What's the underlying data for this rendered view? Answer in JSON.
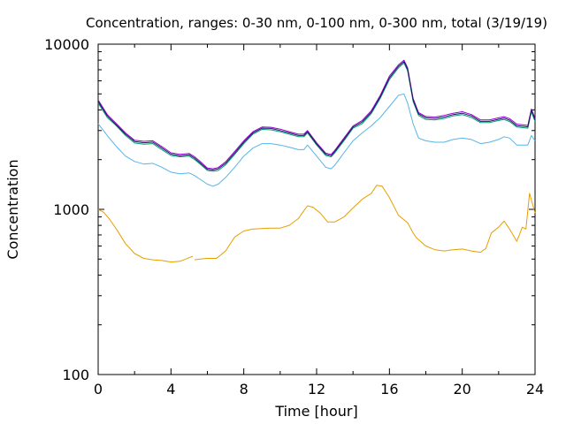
{
  "chart_data": {
    "type": "line",
    "title": "Concentration, ranges: 0-30 nm, 0-100 nm, 0-300 nm, total (3/19/19)",
    "xlabel": "Time [hour]",
    "ylabel": "Concentration",
    "xlim": [
      0,
      24
    ],
    "ylim": [
      100,
      10000
    ],
    "yscale": "log",
    "grid": false,
    "legend": "none",
    "x_ticks": [
      0,
      4,
      8,
      12,
      16,
      20,
      24
    ],
    "x_tick_labels": [
      "0",
      "4",
      "8",
      "12",
      "16",
      "20",
      "24"
    ],
    "y_ticks": [
      100,
      1000,
      10000
    ],
    "y_tick_labels": [
      "100",
      "1000",
      "10000"
    ],
    "series": [
      {
        "color": "#e69f00",
        "gaps": [
          [
            5.2,
            5.3
          ],
          [
            23.3,
            23.7
          ]
        ],
        "points": [
          [
            0,
            1000
          ],
          [
            0.3,
            960
          ],
          [
            0.6,
            880
          ],
          [
            1,
            760
          ],
          [
            1.5,
            620
          ],
          [
            2,
            540
          ],
          [
            2.5,
            505
          ],
          [
            3,
            495
          ],
          [
            3.5,
            490
          ],
          [
            4,
            480
          ],
          [
            4.5,
            485
          ],
          [
            5,
            510
          ],
          [
            5.2,
            520
          ],
          [
            5.3,
            495
          ],
          [
            5.6,
            500
          ],
          [
            6,
            505
          ],
          [
            6.5,
            505
          ],
          [
            7,
            560
          ],
          [
            7.5,
            680
          ],
          [
            8,
            740
          ],
          [
            8.5,
            760
          ],
          [
            9,
            765
          ],
          [
            9.5,
            770
          ],
          [
            10,
            770
          ],
          [
            10.5,
            800
          ],
          [
            11,
            880
          ],
          [
            11.3,
            980
          ],
          [
            11.5,
            1050
          ],
          [
            11.8,
            1030
          ],
          [
            12.2,
            950
          ],
          [
            12.6,
            840
          ],
          [
            13,
            840
          ],
          [
            13.5,
            900
          ],
          [
            14,
            1020
          ],
          [
            14.5,
            1150
          ],
          [
            15,
            1250
          ],
          [
            15.3,
            1400
          ],
          [
            15.6,
            1380
          ],
          [
            16,
            1180
          ],
          [
            16.5,
            920
          ],
          [
            17,
            830
          ],
          [
            17.3,
            720
          ],
          [
            17.5,
            670
          ],
          [
            18,
            600
          ],
          [
            18.5,
            570
          ],
          [
            19,
            560
          ],
          [
            19.5,
            570
          ],
          [
            20,
            575
          ],
          [
            20.5,
            560
          ],
          [
            21,
            550
          ],
          [
            21.3,
            580
          ],
          [
            21.6,
            720
          ],
          [
            22,
            780
          ],
          [
            22.3,
            850
          ],
          [
            22.6,
            760
          ],
          [
            23,
            640
          ],
          [
            23.3,
            780
          ],
          [
            23.5,
            760
          ],
          [
            23.7,
            1250
          ],
          [
            24,
            950
          ]
        ]
      },
      {
        "color": "#56b4e9",
        "gaps": [],
        "points": [
          [
            0,
            3300
          ],
          [
            0.5,
            2800
          ],
          [
            1,
            2400
          ],
          [
            1.5,
            2100
          ],
          [
            2,
            1950
          ],
          [
            2.5,
            1880
          ],
          [
            3,
            1900
          ],
          [
            3.5,
            1800
          ],
          [
            4,
            1680
          ],
          [
            4.5,
            1640
          ],
          [
            5,
            1660
          ],
          [
            5.3,
            1600
          ],
          [
            5.6,
            1520
          ],
          [
            6,
            1420
          ],
          [
            6.3,
            1380
          ],
          [
            6.6,
            1420
          ],
          [
            7,
            1560
          ],
          [
            7.5,
            1800
          ],
          [
            8,
            2100
          ],
          [
            8.5,
            2350
          ],
          [
            9,
            2500
          ],
          [
            9.5,
            2500
          ],
          [
            10,
            2450
          ],
          [
            10.5,
            2380
          ],
          [
            11,
            2300
          ],
          [
            11.3,
            2300
          ],
          [
            11.5,
            2450
          ],
          [
            12,
            2100
          ],
          [
            12.5,
            1800
          ],
          [
            12.8,
            1760
          ],
          [
            13,
            1850
          ],
          [
            13.5,
            2200
          ],
          [
            14,
            2600
          ],
          [
            14.5,
            2900
          ],
          [
            15,
            3200
          ],
          [
            15.5,
            3600
          ],
          [
            16,
            4200
          ],
          [
            16.5,
            4900
          ],
          [
            16.8,
            5000
          ],
          [
            17,
            4400
          ],
          [
            17.3,
            3300
          ],
          [
            17.6,
            2700
          ],
          [
            18,
            2600
          ],
          [
            18.5,
            2550
          ],
          [
            19,
            2550
          ],
          [
            19.5,
            2650
          ],
          [
            20,
            2700
          ],
          [
            20.5,
            2650
          ],
          [
            21,
            2500
          ],
          [
            21.5,
            2550
          ],
          [
            22,
            2650
          ],
          [
            22.3,
            2750
          ],
          [
            22.6,
            2700
          ],
          [
            23,
            2450
          ],
          [
            23.6,
            2450
          ],
          [
            23.8,
            2800
          ],
          [
            24,
            2600
          ]
        ]
      },
      {
        "color": "#009e73",
        "gaps": [],
        "points": [
          [
            0,
            4400
          ],
          [
            0.5,
            3600
          ],
          [
            1,
            3200
          ],
          [
            1.5,
            2800
          ],
          [
            2,
            2520
          ],
          [
            2.5,
            2480
          ],
          [
            3,
            2500
          ],
          [
            3.5,
            2300
          ],
          [
            4,
            2120
          ],
          [
            4.5,
            2080
          ],
          [
            5,
            2100
          ],
          [
            5.3,
            2000
          ],
          [
            5.6,
            1880
          ],
          [
            6,
            1720
          ],
          [
            6.3,
            1700
          ],
          [
            6.6,
            1720
          ],
          [
            7,
            1860
          ],
          [
            7.5,
            2150
          ],
          [
            8,
            2500
          ],
          [
            8.5,
            2850
          ],
          [
            9,
            3050
          ],
          [
            9.5,
            3030
          ],
          [
            10,
            2950
          ],
          [
            10.5,
            2850
          ],
          [
            11,
            2750
          ],
          [
            11.3,
            2750
          ],
          [
            11.5,
            2900
          ],
          [
            12,
            2450
          ],
          [
            12.5,
            2120
          ],
          [
            12.8,
            2080
          ],
          [
            13,
            2200
          ],
          [
            13.5,
            2600
          ],
          [
            14,
            3100
          ],
          [
            14.5,
            3300
          ],
          [
            15,
            3800
          ],
          [
            15.5,
            4700
          ],
          [
            16,
            6100
          ],
          [
            16.5,
            7200
          ],
          [
            16.8,
            7700
          ],
          [
            17,
            6900
          ],
          [
            17.3,
            4500
          ],
          [
            17.6,
            3700
          ],
          [
            18,
            3500
          ],
          [
            18.5,
            3480
          ],
          [
            19,
            3550
          ],
          [
            19.5,
            3680
          ],
          [
            20,
            3750
          ],
          [
            20.5,
            3600
          ],
          [
            21,
            3350
          ],
          [
            21.5,
            3350
          ],
          [
            22,
            3450
          ],
          [
            22.3,
            3500
          ],
          [
            22.6,
            3400
          ],
          [
            23,
            3150
          ],
          [
            23.6,
            3100
          ],
          [
            23.8,
            3900
          ],
          [
            24,
            3400
          ]
        ]
      },
      {
        "color": "#9400d3",
        "gaps": [],
        "points": [
          [
            0,
            4600
          ],
          [
            0.5,
            3750
          ],
          [
            1,
            3300
          ],
          [
            1.5,
            2900
          ],
          [
            2,
            2620
          ],
          [
            2.5,
            2580
          ],
          [
            3,
            2600
          ],
          [
            3.5,
            2400
          ],
          [
            4,
            2200
          ],
          [
            4.5,
            2150
          ],
          [
            5,
            2180
          ],
          [
            5.3,
            2080
          ],
          [
            5.6,
            1950
          ],
          [
            6,
            1780
          ],
          [
            6.3,
            1760
          ],
          [
            6.6,
            1790
          ],
          [
            7,
            1940
          ],
          [
            7.5,
            2240
          ],
          [
            8,
            2600
          ],
          [
            8.5,
            2950
          ],
          [
            9,
            3150
          ],
          [
            9.5,
            3140
          ],
          [
            10,
            3060
          ],
          [
            10.5,
            2950
          ],
          [
            11,
            2850
          ],
          [
            11.3,
            2850
          ],
          [
            11.5,
            3000
          ],
          [
            12,
            2530
          ],
          [
            12.5,
            2190
          ],
          [
            12.8,
            2150
          ],
          [
            13,
            2280
          ],
          [
            13.5,
            2700
          ],
          [
            14,
            3200
          ],
          [
            14.5,
            3450
          ],
          [
            15,
            3950
          ],
          [
            15.5,
            4900
          ],
          [
            16,
            6400
          ],
          [
            16.5,
            7500
          ],
          [
            16.8,
            8000
          ],
          [
            17,
            7200
          ],
          [
            17.3,
            4700
          ],
          [
            17.6,
            3850
          ],
          [
            18,
            3650
          ],
          [
            18.5,
            3620
          ],
          [
            19,
            3700
          ],
          [
            19.5,
            3820
          ],
          [
            20,
            3900
          ],
          [
            20.5,
            3750
          ],
          [
            21,
            3480
          ],
          [
            21.5,
            3480
          ],
          [
            22,
            3580
          ],
          [
            22.3,
            3640
          ],
          [
            22.6,
            3540
          ],
          [
            23,
            3280
          ],
          [
            23.6,
            3220
          ],
          [
            23.8,
            4050
          ],
          [
            24,
            3550
          ]
        ]
      },
      {
        "color": "#1a1a5e",
        "gaps": [],
        "points": [
          [
            0,
            4500
          ],
          [
            0.5,
            3680
          ],
          [
            1,
            3240
          ],
          [
            1.5,
            2850
          ],
          [
            2,
            2570
          ],
          [
            2.5,
            2530
          ],
          [
            3,
            2550
          ],
          [
            3.5,
            2350
          ],
          [
            4,
            2160
          ],
          [
            4.5,
            2110
          ],
          [
            5,
            2140
          ],
          [
            5.3,
            2040
          ],
          [
            5.6,
            1910
          ],
          [
            6,
            1750
          ],
          [
            6.3,
            1730
          ],
          [
            6.6,
            1760
          ],
          [
            7,
            1900
          ],
          [
            7.5,
            2190
          ],
          [
            8,
            2550
          ],
          [
            8.5,
            2900
          ],
          [
            9,
            3100
          ],
          [
            9.5,
            3090
          ],
          [
            10,
            3000
          ],
          [
            10.5,
            2900
          ],
          [
            11,
            2800
          ],
          [
            11.3,
            2800
          ],
          [
            11.5,
            2950
          ],
          [
            12,
            2490
          ],
          [
            12.5,
            2155
          ],
          [
            12.8,
            2115
          ],
          [
            13,
            2240
          ],
          [
            13.5,
            2650
          ],
          [
            14,
            3150
          ],
          [
            14.5,
            3380
          ],
          [
            15,
            3870
          ],
          [
            15.5,
            4800
          ],
          [
            16,
            6250
          ],
          [
            16.5,
            7350
          ],
          [
            16.8,
            7850
          ],
          [
            17,
            7050
          ],
          [
            17.3,
            4600
          ],
          [
            17.6,
            3780
          ],
          [
            18,
            3580
          ],
          [
            18.5,
            3550
          ],
          [
            19,
            3620
          ],
          [
            19.5,
            3750
          ],
          [
            20,
            3820
          ],
          [
            20.5,
            3680
          ],
          [
            21,
            3410
          ],
          [
            21.5,
            3410
          ],
          [
            22,
            3510
          ],
          [
            22.3,
            3570
          ],
          [
            22.6,
            3470
          ],
          [
            23,
            3210
          ],
          [
            23.6,
            3160
          ],
          [
            23.8,
            3980
          ],
          [
            24,
            3480
          ]
        ]
      }
    ]
  }
}
